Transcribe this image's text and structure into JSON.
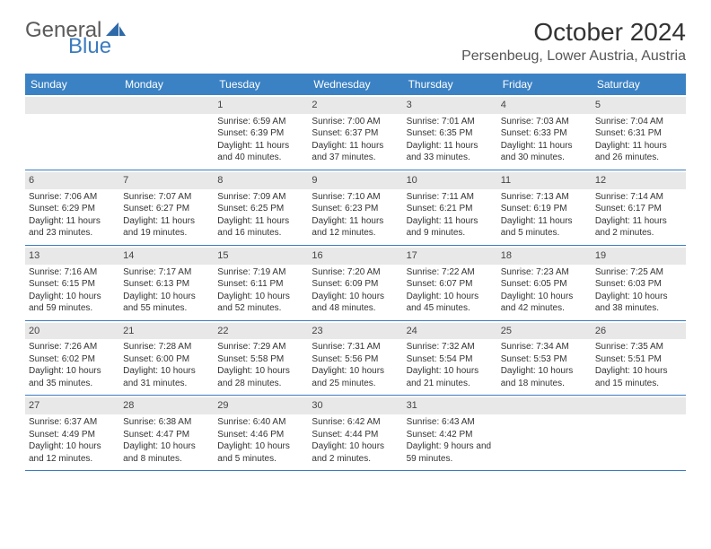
{
  "logo": {
    "text1": "General",
    "text2": "Blue"
  },
  "title": "October 2024",
  "location": "Persenbeug, Lower Austria, Austria",
  "colors": {
    "header_bg": "#3b82c4",
    "header_text": "#ffffff",
    "daynum_bg": "#e8e8e8",
    "rule": "#3b7bbf",
    "logo_gray": "#5a5a5a",
    "logo_blue": "#3b7bbf"
  },
  "dayNames": [
    "Sunday",
    "Monday",
    "Tuesday",
    "Wednesday",
    "Thursday",
    "Friday",
    "Saturday"
  ],
  "weeks": [
    [
      null,
      null,
      {
        "n": "1",
        "sr": "6:59 AM",
        "ss": "6:39 PM",
        "dl": "11 hours and 40 minutes."
      },
      {
        "n": "2",
        "sr": "7:00 AM",
        "ss": "6:37 PM",
        "dl": "11 hours and 37 minutes."
      },
      {
        "n": "3",
        "sr": "7:01 AM",
        "ss": "6:35 PM",
        "dl": "11 hours and 33 minutes."
      },
      {
        "n": "4",
        "sr": "7:03 AM",
        "ss": "6:33 PM",
        "dl": "11 hours and 30 minutes."
      },
      {
        "n": "5",
        "sr": "7:04 AM",
        "ss": "6:31 PM",
        "dl": "11 hours and 26 minutes."
      }
    ],
    [
      {
        "n": "6",
        "sr": "7:06 AM",
        "ss": "6:29 PM",
        "dl": "11 hours and 23 minutes."
      },
      {
        "n": "7",
        "sr": "7:07 AM",
        "ss": "6:27 PM",
        "dl": "11 hours and 19 minutes."
      },
      {
        "n": "8",
        "sr": "7:09 AM",
        "ss": "6:25 PM",
        "dl": "11 hours and 16 minutes."
      },
      {
        "n": "9",
        "sr": "7:10 AM",
        "ss": "6:23 PM",
        "dl": "11 hours and 12 minutes."
      },
      {
        "n": "10",
        "sr": "7:11 AM",
        "ss": "6:21 PM",
        "dl": "11 hours and 9 minutes."
      },
      {
        "n": "11",
        "sr": "7:13 AM",
        "ss": "6:19 PM",
        "dl": "11 hours and 5 minutes."
      },
      {
        "n": "12",
        "sr": "7:14 AM",
        "ss": "6:17 PM",
        "dl": "11 hours and 2 minutes."
      }
    ],
    [
      {
        "n": "13",
        "sr": "7:16 AM",
        "ss": "6:15 PM",
        "dl": "10 hours and 59 minutes."
      },
      {
        "n": "14",
        "sr": "7:17 AM",
        "ss": "6:13 PM",
        "dl": "10 hours and 55 minutes."
      },
      {
        "n": "15",
        "sr": "7:19 AM",
        "ss": "6:11 PM",
        "dl": "10 hours and 52 minutes."
      },
      {
        "n": "16",
        "sr": "7:20 AM",
        "ss": "6:09 PM",
        "dl": "10 hours and 48 minutes."
      },
      {
        "n": "17",
        "sr": "7:22 AM",
        "ss": "6:07 PM",
        "dl": "10 hours and 45 minutes."
      },
      {
        "n": "18",
        "sr": "7:23 AM",
        "ss": "6:05 PM",
        "dl": "10 hours and 42 minutes."
      },
      {
        "n": "19",
        "sr": "7:25 AM",
        "ss": "6:03 PM",
        "dl": "10 hours and 38 minutes."
      }
    ],
    [
      {
        "n": "20",
        "sr": "7:26 AM",
        "ss": "6:02 PM",
        "dl": "10 hours and 35 minutes."
      },
      {
        "n": "21",
        "sr": "7:28 AM",
        "ss": "6:00 PM",
        "dl": "10 hours and 31 minutes."
      },
      {
        "n": "22",
        "sr": "7:29 AM",
        "ss": "5:58 PM",
        "dl": "10 hours and 28 minutes."
      },
      {
        "n": "23",
        "sr": "7:31 AM",
        "ss": "5:56 PM",
        "dl": "10 hours and 25 minutes."
      },
      {
        "n": "24",
        "sr": "7:32 AM",
        "ss": "5:54 PM",
        "dl": "10 hours and 21 minutes."
      },
      {
        "n": "25",
        "sr": "7:34 AM",
        "ss": "5:53 PM",
        "dl": "10 hours and 18 minutes."
      },
      {
        "n": "26",
        "sr": "7:35 AM",
        "ss": "5:51 PM",
        "dl": "10 hours and 15 minutes."
      }
    ],
    [
      {
        "n": "27",
        "sr": "6:37 AM",
        "ss": "4:49 PM",
        "dl": "10 hours and 12 minutes."
      },
      {
        "n": "28",
        "sr": "6:38 AM",
        "ss": "4:47 PM",
        "dl": "10 hours and 8 minutes."
      },
      {
        "n": "29",
        "sr": "6:40 AM",
        "ss": "4:46 PM",
        "dl": "10 hours and 5 minutes."
      },
      {
        "n": "30",
        "sr": "6:42 AM",
        "ss": "4:44 PM",
        "dl": "10 hours and 2 minutes."
      },
      {
        "n": "31",
        "sr": "6:43 AM",
        "ss": "4:42 PM",
        "dl": "9 hours and 59 minutes."
      },
      null,
      null
    ]
  ],
  "labels": {
    "sunrise": "Sunrise:",
    "sunset": "Sunset:",
    "daylight": "Daylight:"
  }
}
